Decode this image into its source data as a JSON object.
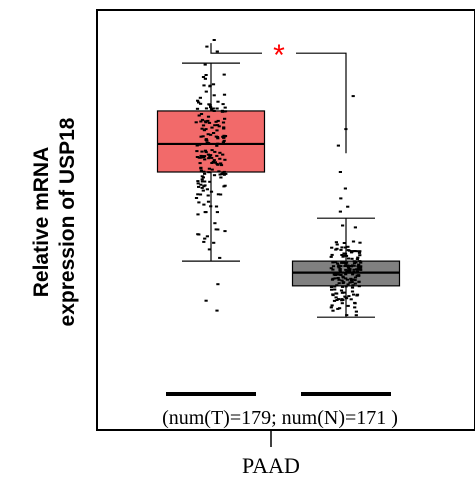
{
  "chart_data": {
    "type": "box",
    "ylabel_lines": [
      "Relative mRNA",
      "expression of USP18"
    ],
    "xlabel": "PAAD",
    "sample_note": "(num(T)=179; num(N)=171 )",
    "significance": "*",
    "ylim": [
      0,
      10
    ],
    "grid": false,
    "groups": [
      {
        "key": "T",
        "n": 179,
        "color": "#f26a6a",
        "box": {
          "whisker_low": 3.3,
          "q1": 6.0,
          "median": 6.85,
          "q3": 7.85,
          "whisker_high": 9.3
        },
        "outliers": [
          2.6,
          2.1,
          1.8,
          9.65,
          9.8,
          10.0
        ]
      },
      {
        "key": "N",
        "n": 171,
        "color": "#808080",
        "box": {
          "whisker_low": 1.6,
          "q1": 2.55,
          "median": 2.95,
          "q3": 3.3,
          "whisker_high": 4.6
        },
        "outliers": [
          8.3,
          7.3,
          6.8,
          6.0,
          5.5,
          5.2,
          4.95,
          4.8
        ]
      }
    ]
  }
}
